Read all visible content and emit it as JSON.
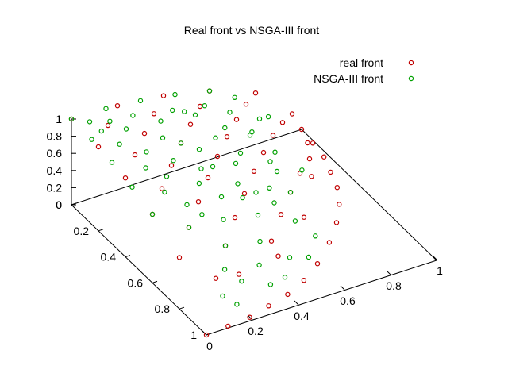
{
  "chart_data": {
    "type": "scatter",
    "title": "Real front vs NSGA-III front",
    "xlabel": "",
    "ylabel": "",
    "zlabel": "",
    "axes": {
      "x": {
        "range": [
          0,
          1
        ],
        "ticks": [
          "0",
          "0.2",
          "0.4",
          "0.6",
          "0.8",
          "1"
        ]
      },
      "y": {
        "range": [
          0,
          1
        ],
        "ticks": [
          "0",
          "0.2",
          "0.4",
          "0.6",
          "0.8",
          "1"
        ]
      },
      "z": {
        "range": [
          0,
          1
        ],
        "ticks": [
          "0",
          "0.2",
          "0.4",
          "0.6",
          "0.8",
          "1"
        ]
      }
    },
    "grid": false,
    "legend_position": "top-right",
    "series": [
      {
        "name": "real front",
        "color": "#c00000",
        "marker": "open-circle",
        "points": [
          [
            0.0,
            0.0,
            1.0
          ],
          [
            0.0,
            0.2,
            0.98
          ],
          [
            0.0,
            0.4,
            0.92
          ],
          [
            0.0,
            0.6,
            0.8
          ],
          [
            0.0,
            0.8,
            0.6
          ],
          [
            0.0,
            1.0,
            0.0
          ],
          [
            0.2,
            0.0,
            0.98
          ],
          [
            0.2,
            0.2,
            0.96
          ],
          [
            0.2,
            0.4,
            0.89
          ],
          [
            0.2,
            0.6,
            0.77
          ],
          [
            0.2,
            0.8,
            0.56
          ],
          [
            0.2,
            0.98,
            0.0
          ],
          [
            0.4,
            0.0,
            0.92
          ],
          [
            0.4,
            0.2,
            0.89
          ],
          [
            0.4,
            0.4,
            0.82
          ],
          [
            0.4,
            0.6,
            0.69
          ],
          [
            0.4,
            0.8,
            0.44
          ],
          [
            0.4,
            0.92,
            0.0
          ],
          [
            0.6,
            0.0,
            0.8
          ],
          [
            0.6,
            0.2,
            0.77
          ],
          [
            0.6,
            0.4,
            0.69
          ],
          [
            0.6,
            0.6,
            0.53
          ],
          [
            0.6,
            0.8,
            0.0
          ],
          [
            0.8,
            0.0,
            0.6
          ],
          [
            0.8,
            0.2,
            0.56
          ],
          [
            0.8,
            0.4,
            0.44
          ],
          [
            0.8,
            0.6,
            0.0
          ],
          [
            1.0,
            0.0,
            0.0
          ],
          [
            0.98,
            0.2,
            0.0
          ],
          [
            0.92,
            0.4,
            0.0
          ],
          [
            0.1,
            0.99,
            0.0
          ],
          [
            0.3,
            0.95,
            0.0
          ],
          [
            0.5,
            0.87,
            0.0
          ],
          [
            0.7,
            0.71,
            0.0
          ],
          [
            0.87,
            0.5,
            0.0
          ],
          [
            0.95,
            0.3,
            0.0
          ],
          [
            0.99,
            0.1,
            0.0
          ],
          [
            0.1,
            0.9,
            0.42
          ],
          [
            0.3,
            0.85,
            0.43
          ],
          [
            0.5,
            0.75,
            0.43
          ],
          [
            0.7,
            0.6,
            0.39
          ],
          [
            0.85,
            0.4,
            0.34
          ],
          [
            0.9,
            0.2,
            0.38
          ],
          [
            0.1,
            0.1,
            0.99
          ],
          [
            0.3,
            0.1,
            0.95
          ],
          [
            0.5,
            0.1,
            0.86
          ],
          [
            0.7,
            0.1,
            0.71
          ],
          [
            0.9,
            0.1,
            0.42
          ],
          [
            0.1,
            0.3,
            0.95
          ],
          [
            0.1,
            0.5,
            0.86
          ],
          [
            0.1,
            0.7,
            0.71
          ],
          [
            0.3,
            0.3,
            0.91
          ],
          [
            0.3,
            0.5,
            0.81
          ],
          [
            0.3,
            0.7,
            0.65
          ],
          [
            0.5,
            0.3,
            0.81
          ],
          [
            0.5,
            0.5,
            0.71
          ],
          [
            0.5,
            0.7,
            0.51
          ],
          [
            0.7,
            0.3,
            0.65
          ],
          [
            0.7,
            0.5,
            0.51
          ]
        ]
      },
      {
        "name": "NSGA-III front",
        "color": "#00a000",
        "marker": "open-circle",
        "points": [
          [
            0.0,
            0.0,
            1.0
          ],
          [
            0.0,
            0.15,
            0.99
          ],
          [
            0.0,
            0.3,
            0.95
          ],
          [
            0.0,
            0.45,
            0.89
          ],
          [
            0.0,
            0.6,
            0.8
          ],
          [
            0.15,
            0.0,
            0.99
          ],
          [
            0.15,
            0.15,
            0.98
          ],
          [
            0.15,
            0.3,
            0.94
          ],
          [
            0.15,
            0.45,
            0.88
          ],
          [
            0.15,
            0.6,
            0.78
          ],
          [
            0.3,
            0.0,
            0.95
          ],
          [
            0.3,
            0.15,
            0.94
          ],
          [
            0.3,
            0.3,
            0.91
          ],
          [
            0.3,
            0.45,
            0.84
          ],
          [
            0.3,
            0.6,
            0.74
          ],
          [
            0.45,
            0.0,
            0.89
          ],
          [
            0.45,
            0.15,
            0.88
          ],
          [
            0.45,
            0.3,
            0.84
          ],
          [
            0.45,
            0.45,
            0.77
          ],
          [
            0.45,
            0.6,
            0.66
          ],
          [
            0.6,
            0.0,
            0.8
          ],
          [
            0.6,
            0.15,
            0.78
          ],
          [
            0.6,
            0.3,
            0.74
          ],
          [
            0.6,
            0.45,
            0.66
          ],
          [
            0.6,
            0.6,
            0.53
          ],
          [
            0.05,
            0.05,
            1.0
          ],
          [
            0.08,
            0.12,
            0.99
          ],
          [
            0.12,
            0.06,
            0.99
          ],
          [
            0.22,
            0.08,
            0.97
          ],
          [
            0.08,
            0.22,
            0.97
          ],
          [
            0.25,
            0.25,
            0.94
          ],
          [
            0.38,
            0.1,
            0.92
          ],
          [
            0.1,
            0.38,
            0.92
          ],
          [
            0.52,
            0.1,
            0.85
          ],
          [
            0.1,
            0.52,
            0.85
          ],
          [
            0.35,
            0.35,
            0.87
          ],
          [
            0.52,
            0.25,
            0.82
          ],
          [
            0.25,
            0.52,
            0.82
          ],
          [
            0.7,
            0.1,
            0.71
          ],
          [
            0.7,
            0.25,
            0.67
          ],
          [
            0.7,
            0.4,
            0.59
          ],
          [
            0.8,
            0.2,
            0.56
          ],
          [
            0.8,
            0.35,
            0.48
          ],
          [
            0.88,
            0.15,
            0.45
          ],
          [
            0.88,
            0.3,
            0.37
          ],
          [
            0.92,
            0.2,
            0.33
          ],
          [
            0.95,
            0.1,
            0.29
          ],
          [
            0.97,
            0.15,
            0.18
          ],
          [
            0.9,
            0.4,
            0.17
          ],
          [
            0.75,
            0.62,
            0.23
          ],
          [
            0.82,
            0.55,
            0.15
          ],
          [
            0.4,
            0.65,
            0.65
          ],
          [
            0.5,
            0.6,
            0.62
          ],
          [
            0.2,
            0.7,
            0.69
          ],
          [
            0.65,
            0.5,
            0.57
          ],
          [
            0.55,
            0.4,
            0.73
          ],
          [
            0.4,
            0.5,
            0.77
          ],
          [
            0.12,
            0.42,
            0.9
          ],
          [
            0.05,
            0.68,
            0.73
          ],
          [
            0.18,
            0.75,
            0.64
          ],
          [
            0.38,
            0.22,
            0.9
          ],
          [
            0.62,
            0.38,
            0.69
          ],
          [
            0.72,
            0.55,
            0.42
          ],
          [
            0.85,
            0.45,
            0.28
          ],
          [
            0.93,
            0.32,
            0.2
          ],
          [
            0.58,
            0.52,
            0.62
          ],
          [
            0.48,
            0.72,
            0.5
          ],
          [
            0.28,
            0.62,
            0.73
          ],
          [
            0.45,
            0.35,
            0.82
          ],
          [
            0.66,
            0.18,
            0.73
          ]
        ]
      }
    ]
  }
}
